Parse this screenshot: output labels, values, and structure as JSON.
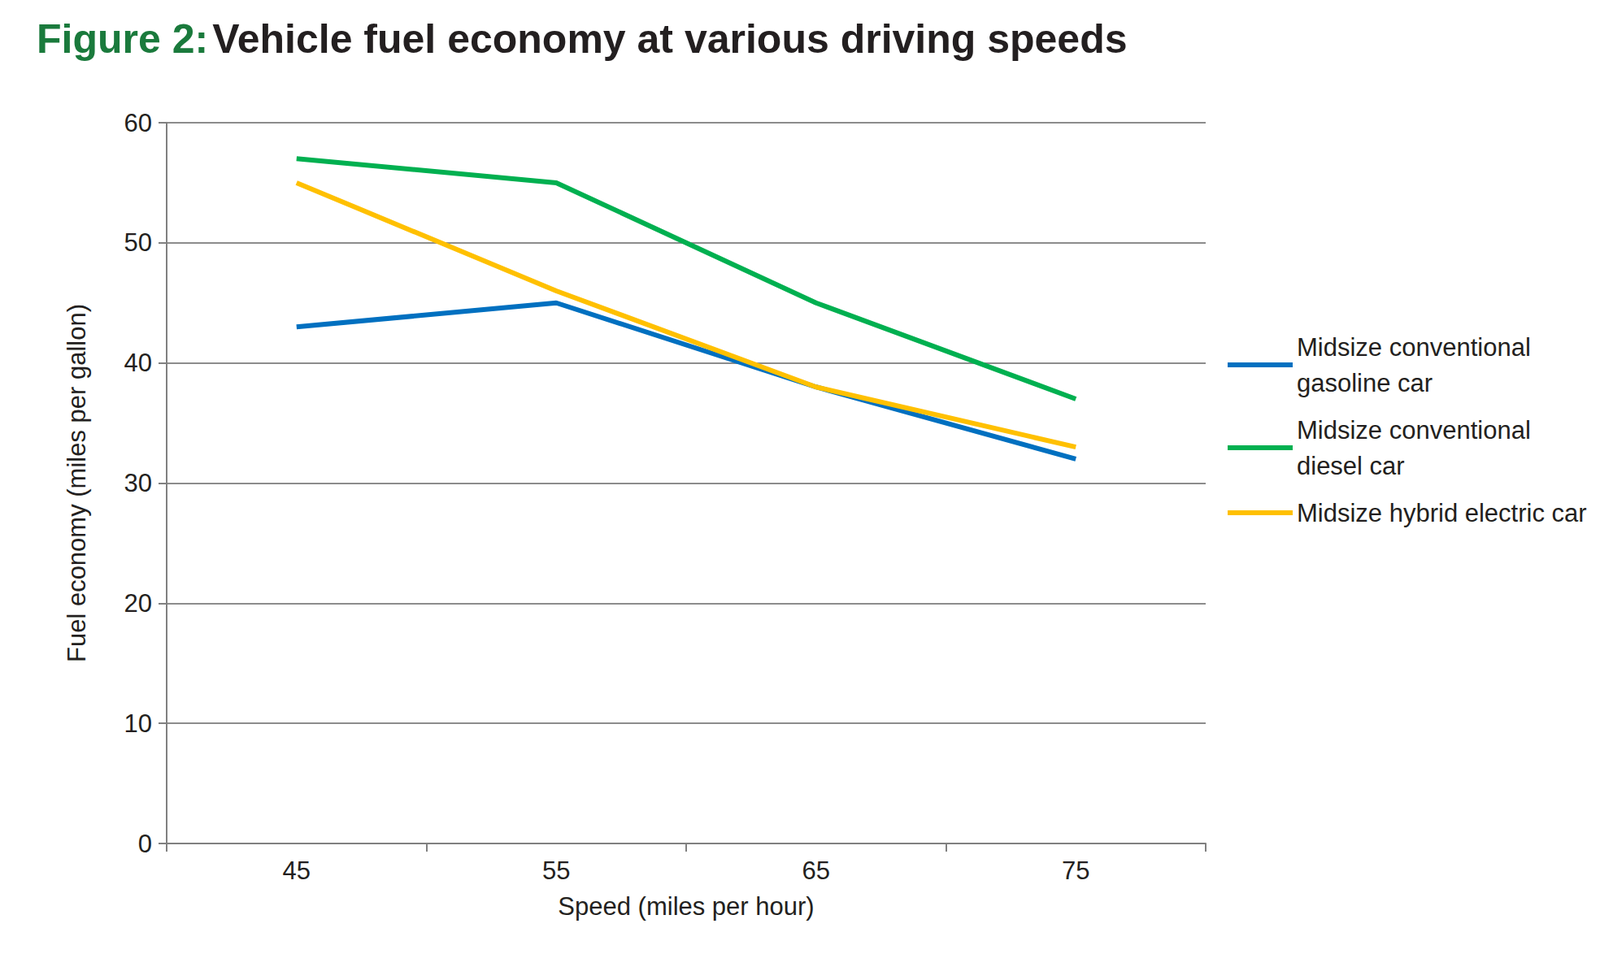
{
  "chart_data": {
    "type": "line",
    "title": "Figure 2: Vehicle fuel economy at various driving speeds",
    "x_label": "Speed (miles per hour)",
    "y_label": "Fuel economy (miles per gallon)",
    "categories": [
      "45",
      "55",
      "65",
      "75"
    ],
    "series": [
      {
        "name": "Midsize conventional gasoline car",
        "color": "#0070c0",
        "values": [
          43,
          45,
          38,
          32
        ]
      },
      {
        "name": "Midsize conventional diesel car",
        "color": "#00b050",
        "values": [
          57,
          55,
          45,
          37
        ]
      },
      {
        "name": "Midsize hybrid electric car",
        "color": "#ffc000",
        "values": [
          55,
          46,
          38,
          33
        ]
      }
    ],
    "ylim": [
      0,
      60
    ],
    "yticks": [
      0,
      10,
      20,
      30,
      40,
      50,
      60
    ],
    "grid": true,
    "legend": "right"
  }
}
